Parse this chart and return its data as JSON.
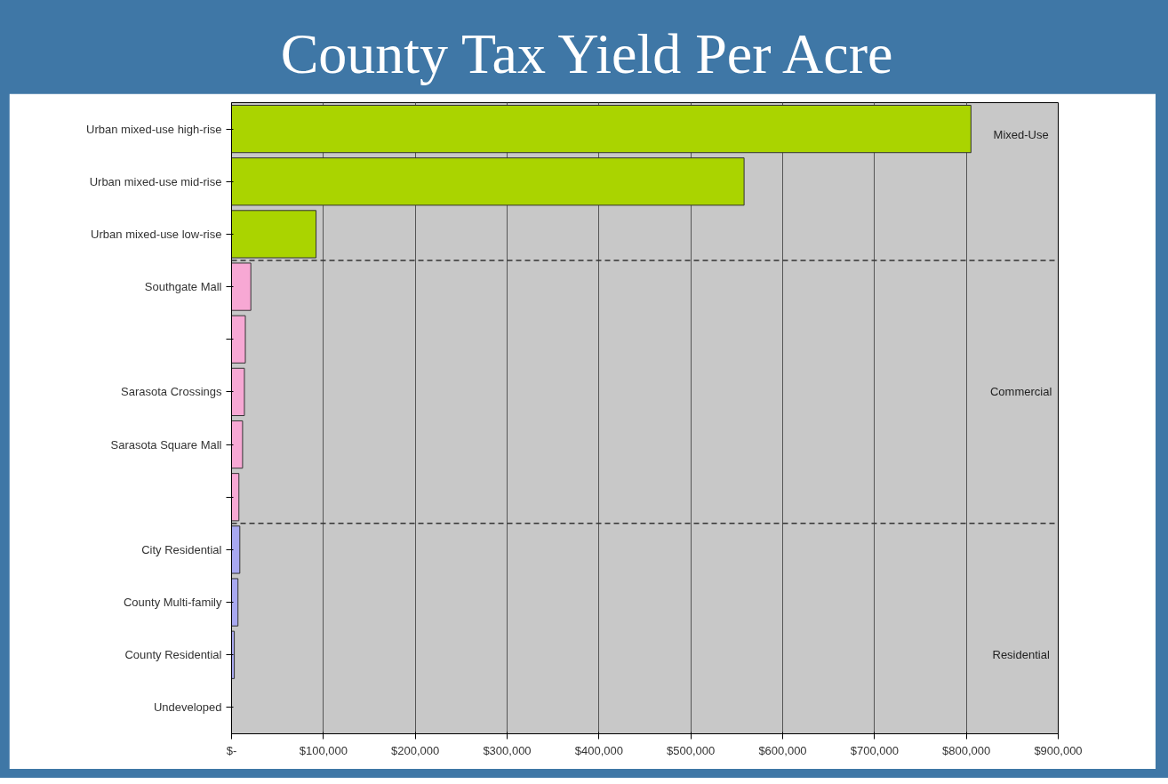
{
  "chart_data": {
    "type": "bar",
    "orientation": "horizontal",
    "title": "County Tax Yield Per Acre",
    "categories": [
      "Urban mixed-use high-rise",
      "Urban mixed-use mid-rise",
      "Urban mixed-use low-rise",
      "Southgate Mall",
      null,
      "Sarasota Crossings",
      "Sarasota Square Mall",
      null,
      "City Residential",
      "County Multi-family",
      "County Residential",
      "Undeveloped"
    ],
    "values": [
      805000,
      558000,
      92000,
      21000,
      15000,
      14000,
      12000,
      8000,
      9000,
      7000,
      3000,
      0
    ],
    "colors": [
      "#aad400",
      "#aad400",
      "#aad400",
      "#f7a8d4",
      "#f7a8d4",
      "#f7a8d4",
      "#f7a8d4",
      "#f7a8d4",
      "#a8a8f0",
      "#a8a8f0",
      "#a8a8f0",
      "#a8a8f0"
    ],
    "xlim": [
      0,
      900000
    ],
    "xticks": [
      {
        "value": 0,
        "label": "$-"
      },
      {
        "value": 100000,
        "label": "$100,000"
      },
      {
        "value": 200000,
        "label": "$200,000"
      },
      {
        "value": 300000,
        "label": "$300,000"
      },
      {
        "value": 400000,
        "label": "$400,000"
      },
      {
        "value": 500000,
        "label": "$500,000"
      },
      {
        "value": 600000,
        "label": "$600,000"
      },
      {
        "value": 700000,
        "label": "$700,000"
      },
      {
        "value": 800000,
        "label": "$800,000"
      },
      {
        "value": 900000,
        "label": "$900,000"
      }
    ],
    "grid": "x",
    "annotations": [
      "Mixed-Use",
      "Commercial",
      "Residential"
    ]
  }
}
